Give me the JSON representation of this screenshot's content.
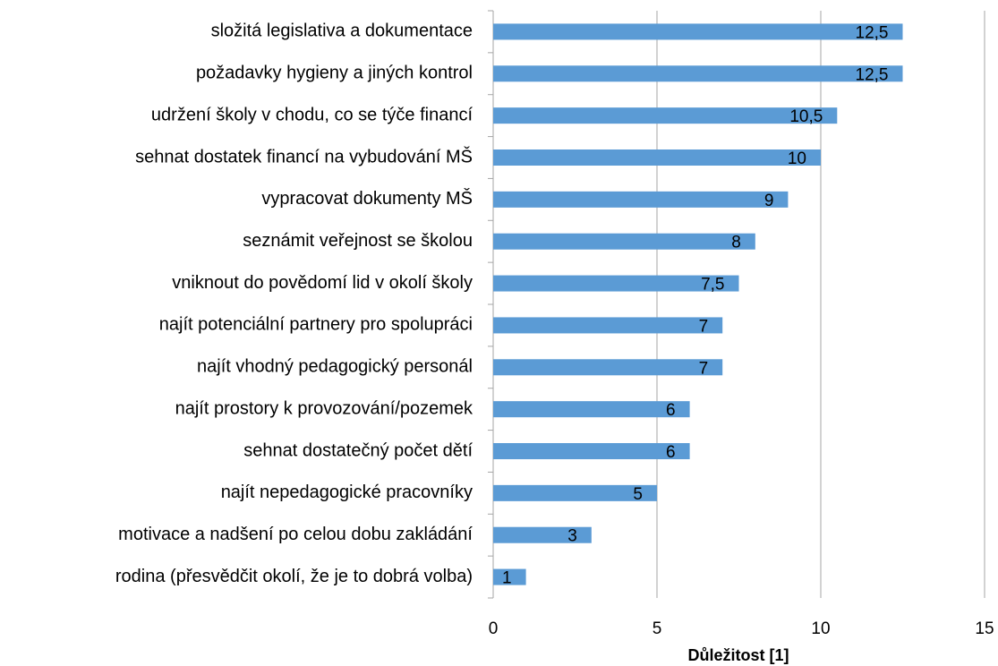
{
  "chart_data": {
    "type": "barh",
    "categories": [
      "složitá legislativa a dokumentace",
      "požadavky hygieny a jiných kontrol",
      "udržení školy v chodu, co se týče financí",
      "sehnat dostatek financí na vybudování MŠ",
      "vypracovat dokumenty MŠ",
      "seznámit veřejnost se školou",
      "vniknout do povědomí lid v okolí školy",
      "najít potenciální partnery pro spolupráci",
      "najít vhodný pedagogický personál",
      "najít prostory k provozování/pozemek",
      "sehnat dostatečný počet dětí",
      "najít nepedagogické pracovníky",
      "motivace a nadšení po celou dobu zakládání",
      "rodina (přesvědčit okolí, že je to dobrá volba)"
    ],
    "values": [
      12.5,
      12.5,
      10.5,
      10,
      9,
      8,
      7.5,
      7,
      7,
      6,
      6,
      5,
      3,
      1
    ],
    "value_labels": [
      "12,5",
      "12,5",
      "10,5",
      "10",
      "9",
      "8",
      "7,5",
      "7",
      "7",
      "6",
      "6",
      "5",
      "3",
      "1"
    ],
    "color": "#5b9bd5",
    "xlabel": "Důležitost [1]",
    "xlim": [
      0,
      15
    ],
    "xticks": [
      0,
      5,
      10,
      15
    ],
    "grid": true
  }
}
